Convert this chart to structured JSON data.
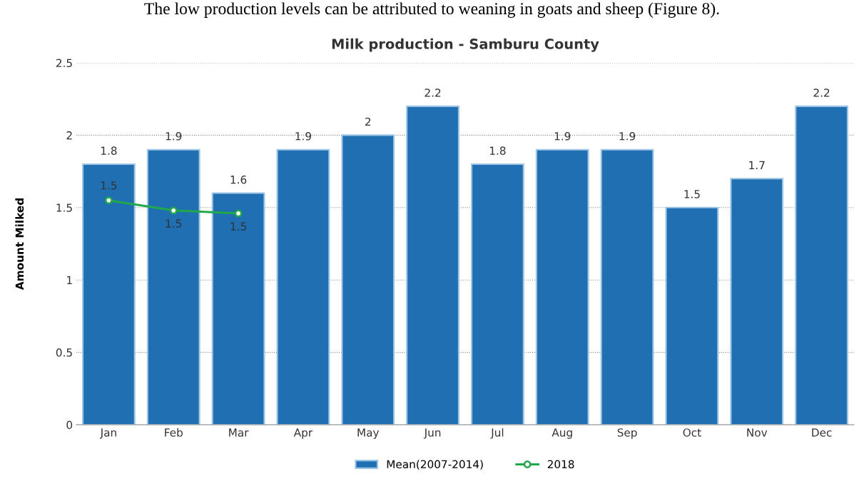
{
  "chart_data": {
    "type": "bar",
    "title": "Milk production - Samburu County",
    "ylabel": "Amount Milked",
    "annotations": [
      "The low production levels can be attributed to weaning in goats and sheep (Figure 8)."
    ],
    "categories": [
      "Jan",
      "Feb",
      "Mar",
      "Apr",
      "May",
      "Jun",
      "Jul",
      "Aug",
      "Sep",
      "Oct",
      "Nov",
      "Dec"
    ],
    "series": [
      {
        "name": "Mean(2007-2014)",
        "color": "#1f6fb2",
        "values": [
          1.8,
          1.9,
          1.6,
          1.9,
          2,
          2.2,
          1.8,
          1.9,
          1.9,
          1.5,
          1.7,
          2.2
        ]
      },
      {
        "name": "2018",
        "type": "line",
        "color": "#22a84a",
        "marker": "circle",
        "values": [
          1.55,
          1.48,
          1.46,
          null,
          null,
          null,
          null,
          null,
          null,
          null,
          null,
          null
        ],
        "value_labels": [
          "1.5",
          "1.5",
          "1.5",
          null,
          null,
          null,
          null,
          null,
          null,
          null,
          null,
          null
        ]
      }
    ],
    "data_labels": true,
    "ylim": [
      0,
      2.5
    ],
    "yticks": [
      0,
      0.5,
      1,
      1.5,
      2,
      2.5
    ],
    "grid": "y",
    "legend": "bottom"
  }
}
